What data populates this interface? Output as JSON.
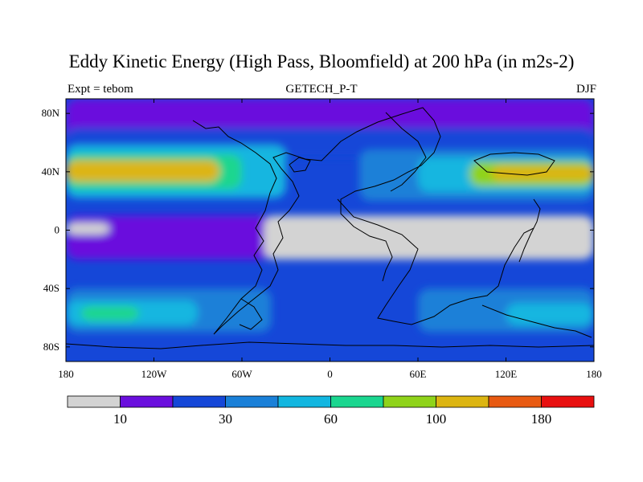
{
  "header": {
    "title": "Eddy Kinetic Energy (High Pass, Bloomfield) at 200 hPa (in m2s-2)",
    "left_subtitle": "Expt = tebom",
    "center_subtitle": "GETECH_P-T",
    "right_subtitle": "DJF"
  },
  "chart_data": {
    "type": "heatmap",
    "title": "Eddy Kinetic Energy (High Pass, Bloomfield) at 200 hPa (in m2s-2)",
    "variable": "Eddy Kinetic Energy",
    "units": "m2s-2",
    "level": "200 hPa",
    "season": "DJF",
    "experiment": "tebom",
    "xlim": [
      -180,
      180
    ],
    "ylim": [
      -90,
      90
    ],
    "x_ticks": [
      {
        "value": -180,
        "label": "180"
      },
      {
        "value": -120,
        "label": "120W"
      },
      {
        "value": -60,
        "label": "60W"
      },
      {
        "value": 0,
        "label": "0"
      },
      {
        "value": 60,
        "label": "60E"
      },
      {
        "value": 120,
        "label": "120E"
      },
      {
        "value": 180,
        "label": "180"
      }
    ],
    "y_ticks": [
      {
        "value": 80,
        "label": "80N"
      },
      {
        "value": 40,
        "label": "40N"
      },
      {
        "value": 0,
        "label": "0"
      },
      {
        "value": -40,
        "label": "40S"
      },
      {
        "value": -80,
        "label": "80S"
      }
    ],
    "colorbar": {
      "colors": [
        "#d3d3d3",
        "#6a0fdd",
        "#1547d8",
        "#1a80d8",
        "#12b6e0",
        "#1ad68f",
        "#8fd31a",
        "#dcb512",
        "#e85a12",
        "#e81010"
      ],
      "labels": [
        {
          "after_box": 1,
          "text": "10"
        },
        {
          "after_box": 3,
          "text": "30"
        },
        {
          "after_box": 5,
          "text": "60"
        },
        {
          "after_box": 7,
          "text": "100"
        },
        {
          "after_box": 9,
          "text": "180"
        }
      ]
    },
    "bands": [
      {
        "lat": [
          60,
          90
        ],
        "level": 1
      },
      {
        "lat": [
          50,
          70
        ],
        "level": 2,
        "lon": [
          -180,
          180
        ]
      },
      {
        "lat": [
          22,
          58
        ],
        "level": 4,
        "lon": [
          -180,
          -30
        ]
      },
      {
        "lat": [
          28,
          52
        ],
        "level": 5,
        "lon": [
          -180,
          -60
        ]
      },
      {
        "lat": [
          33,
          48
        ],
        "level": 7,
        "lon": [
          -180,
          -75
        ]
      },
      {
        "lat": [
          20,
          55
        ],
        "level": 3,
        "lon": [
          20,
          180
        ]
      },
      {
        "lat": [
          26,
          50
        ],
        "level": 4,
        "lon": [
          60,
          180
        ]
      },
      {
        "lat": [
          30,
          47
        ],
        "level": 6,
        "lon": [
          95,
          180
        ]
      },
      {
        "lat": [
          34,
          44
        ],
        "level": 7,
        "lon": [
          110,
          180
        ]
      },
      {
        "lat": [
          -20,
          10
        ],
        "level": 1,
        "lon": [
          -180,
          180
        ]
      },
      {
        "lat": [
          -3,
          5
        ],
        "level": 0,
        "lon": [
          -180,
          -150
        ]
      },
      {
        "lat": [
          -20,
          10
        ],
        "level": 0,
        "lon": [
          -45,
          180
        ]
      },
      {
        "lat": [
          -70,
          -40
        ],
        "level": 3,
        "lon": [
          -180,
          -40
        ]
      },
      {
        "lat": [
          -65,
          -48
        ],
        "level": 4,
        "lon": [
          -180,
          -90
        ]
      },
      {
        "lat": [
          -62,
          -52
        ],
        "level": 5,
        "lon": [
          -170,
          -130
        ]
      },
      {
        "lat": [
          -70,
          -40
        ],
        "level": 3,
        "lon": [
          60,
          180
        ]
      },
      {
        "lat": [
          -65,
          -50
        ],
        "level": 4,
        "lon": [
          120,
          180
        ]
      }
    ]
  }
}
